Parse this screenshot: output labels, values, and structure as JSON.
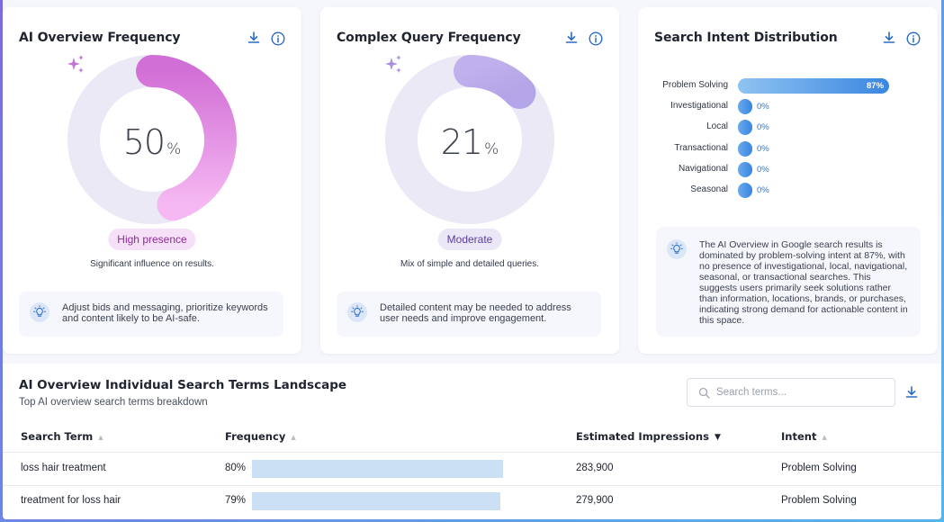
{
  "cards": [
    {
      "title": "AI Overview Frequency",
      "value": "50",
      "unit": "%",
      "value_fraction": 0.5,
      "badge": "High presence",
      "subtext": "Significant influence on results.",
      "tip": "Adjust bids and messaging, prioritize keywords and content likely to be AI-safe."
    },
    {
      "title": "Complex Query Frequency",
      "value": "21",
      "unit": "%",
      "value_fraction": 0.21,
      "badge": "Moderate",
      "subtext": "Mix of simple and detailed queries.",
      "tip": "Detailed content may be needed to address user needs and improve engagement."
    },
    {
      "title": "Search Intent Distribution",
      "intents": [
        {
          "label": "Problem Solving",
          "pct": "87%",
          "value": 87
        },
        {
          "label": "Investigational",
          "pct": "0%",
          "value": 0
        },
        {
          "label": "Local",
          "pct": "0%",
          "value": 0
        },
        {
          "label": "Transactional",
          "pct": "0%",
          "value": 0
        },
        {
          "label": "Navigational",
          "pct": "0%",
          "value": 0
        },
        {
          "label": "Seasonal",
          "pct": "0%",
          "value": 0
        }
      ],
      "tip": "The AI Overview in Google search results is dominated by problem-solving intent at 87%, with no presence of investigational, local, navigational, seasonal, or transactional searches. This suggests users primarily seek solutions rather than information, locations, brands, or purchases, indicating strong demand for actionable content in this space."
    }
  ],
  "landscape": {
    "title": "AI Overview Individual Search Terms Landscape",
    "subtitle": "Top AI overview search terms breakdown",
    "search_placeholder": "Search terms...",
    "columns": [
      "Search Term",
      "Frequency",
      "Estimated Impressions",
      "Intent"
    ],
    "rows": [
      {
        "term": "loss hair treatment",
        "freq": "80%",
        "freq_value": 80,
        "impressions": "283,900",
        "intent": "Problem Solving"
      },
      {
        "term": "treatment for loss hair",
        "freq": "79%",
        "freq_value": 79,
        "impressions": "279,900",
        "intent": "Problem Solving"
      }
    ]
  },
  "colors": {
    "gauge1_start": "#d47ad8",
    "gauge1_end": "#f3b6f0",
    "gauge2_start": "#c7b7ee",
    "gauge2_end": "#b0a0e6",
    "accent_blue": "#2a6cc4",
    "intent_bar": "#3a86e0"
  },
  "icons": [
    "download-icon",
    "info-icon",
    "sparkle-icon",
    "lightbulb-icon",
    "search-icon"
  ]
}
